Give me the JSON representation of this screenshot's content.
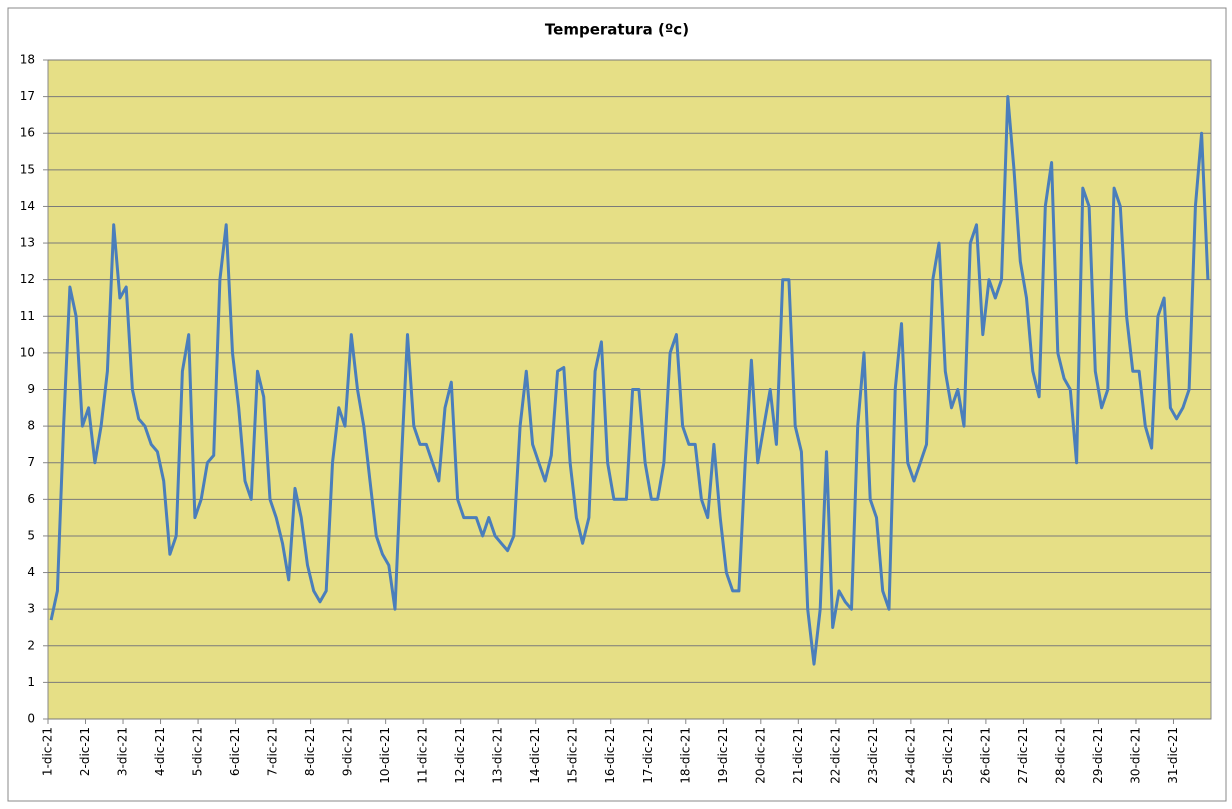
{
  "chart_data": {
    "type": "line",
    "title": "Temperatura (ºc)",
    "categories": [
      "1-dic-21",
      null,
      null,
      null,
      null,
      null,
      "2-dic-21",
      null,
      null,
      null,
      null,
      null,
      "3-dic-21",
      null,
      null,
      null,
      null,
      null,
      "4-dic-21",
      null,
      null,
      null,
      null,
      null,
      "5-dic-21",
      null,
      null,
      null,
      null,
      null,
      "6-dic-21",
      null,
      null,
      null,
      null,
      null,
      "7-dic-21",
      null,
      null,
      null,
      null,
      null,
      "8-dic-21",
      null,
      null,
      null,
      null,
      null,
      "9-dic-21",
      null,
      null,
      null,
      null,
      null,
      "10-dic-21",
      null,
      null,
      null,
      null,
      null,
      "11-dic-21",
      null,
      null,
      null,
      null,
      null,
      "12-dic-21",
      null,
      null,
      null,
      null,
      null,
      "13-dic-21",
      null,
      null,
      null,
      null,
      null,
      "14-dic-21",
      null,
      null,
      null,
      null,
      null,
      "15-dic-21",
      null,
      null,
      null,
      null,
      null,
      "16-dic-21",
      null,
      null,
      null,
      null,
      null,
      "17-dic-21",
      null,
      null,
      null,
      null,
      null,
      "18-dic-21",
      null,
      null,
      null,
      null,
      null,
      "19-dic-21",
      null,
      null,
      null,
      null,
      null,
      "20-dic-21",
      null,
      null,
      null,
      null,
      null,
      "21-dic-21",
      null,
      null,
      null,
      null,
      null,
      "22-dic-21",
      null,
      null,
      null,
      null,
      null,
      "23-dic-21",
      null,
      null,
      null,
      null,
      null,
      "24-dic-21",
      null,
      null,
      null,
      null,
      null,
      "25-dic-21",
      null,
      null,
      null,
      null,
      null,
      "26-dic-21",
      null,
      null,
      null,
      null,
      null,
      "27-dic-21",
      null,
      null,
      null,
      null,
      null,
      "28-dic-21",
      null,
      null,
      null,
      null,
      null,
      "29-dic-21",
      null,
      null,
      null,
      null,
      null,
      "30-dic-21",
      null,
      null,
      null,
      null,
      null,
      "31-dic-21",
      null,
      null,
      null,
      null,
      null
    ],
    "series": [
      {
        "name": "Temperatura",
        "color": "#4a7ebb",
        "values": [
          2.7,
          3.5,
          8,
          11.8,
          11,
          8,
          8.5,
          7,
          8,
          9.5,
          13.5,
          11.5,
          11.8,
          9,
          8.2,
          8,
          7.5,
          7.3,
          6.5,
          4.5,
          5,
          9.5,
          10.5,
          5.5,
          6,
          7,
          7.2,
          12,
          13.5,
          10,
          8.5,
          6.5,
          6,
          9.5,
          8.8,
          6,
          5.5,
          4.8,
          3.8,
          6.3,
          5.5,
          4.2,
          3.5,
          3.2,
          3.5,
          7,
          8.5,
          8,
          10.5,
          9,
          8,
          6.5,
          5,
          4.5,
          4.2,
          3,
          7,
          10.5,
          8,
          7.5,
          7.5,
          7,
          6.5,
          8.5,
          9.2,
          6,
          5.5,
          5.5,
          5.5,
          5,
          5.5,
          5,
          4.8,
          4.6,
          5,
          8,
          9.5,
          7.5,
          7,
          6.5,
          7.2,
          9.5,
          9.6,
          7,
          5.5,
          4.8,
          5.5,
          9.5,
          10.3,
          7,
          6,
          6,
          6,
          9,
          9,
          7,
          6,
          6,
          7,
          10,
          10.5,
          8,
          7.5,
          7.5,
          6,
          5.5,
          7.5,
          5.5,
          4,
          3.5,
          3.5,
          7,
          9.8,
          7,
          8,
          9,
          7.5,
          12,
          12,
          8,
          7.3,
          3,
          1.5,
          3,
          7.3,
          2.5,
          3.5,
          3.2,
          3,
          8,
          10,
          6,
          5.5,
          3.5,
          3,
          9,
          10.8,
          7,
          6.5,
          7,
          7.5,
          12,
          13,
          9.5,
          8.5,
          9,
          8,
          13,
          13.5,
          10.5,
          12,
          11.5,
          12,
          17,
          15,
          12.5,
          11.5,
          9.5,
          8.8,
          14,
          15.2,
          10,
          9.3,
          9,
          7,
          14.5,
          14,
          9.5,
          8.5,
          9,
          14.5,
          14,
          11,
          9.5,
          9.5,
          8,
          7.4,
          11,
          11.5,
          8.5,
          8.2,
          8.5,
          9,
          14,
          16,
          12
        ]
      }
    ],
    "ylim": [
      0,
      18
    ],
    "yticks": [
      0,
      1,
      2,
      3,
      4,
      5,
      6,
      7,
      8,
      9,
      10,
      11,
      12,
      13,
      14,
      15,
      16,
      17,
      18
    ],
    "grid": true,
    "background": "#e6df86"
  }
}
